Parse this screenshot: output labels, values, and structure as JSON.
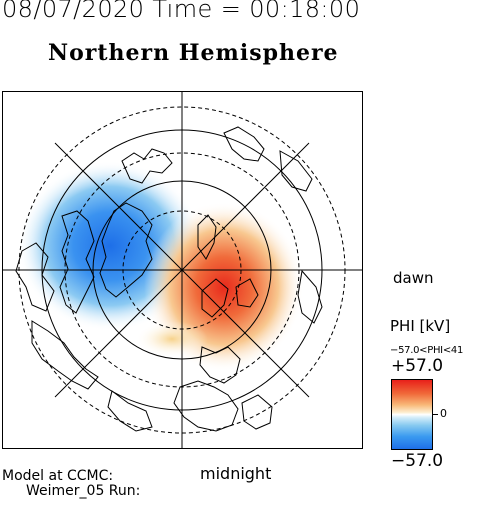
{
  "header": {
    "datetime": "08/07/2020 Time = 00:18:00",
    "hemisphere_title": "Northern Hemisphere"
  },
  "map": {
    "labels": {
      "dawn": "dawn",
      "midnight": "midnight"
    }
  },
  "legend": {
    "title": "PHI [kV]",
    "range_text": "−57.0<PHI<41",
    "max_label": "+57.0",
    "zero_label": "0",
    "min_label": "−57.0",
    "colors": {
      "positive_max": "#e8201a",
      "zero": "#ffffff",
      "negative_max": "#1e6fe8"
    }
  },
  "footer": {
    "model_label": "Model at CCMC:",
    "run_label": "Weimer_05 Run:"
  }
}
